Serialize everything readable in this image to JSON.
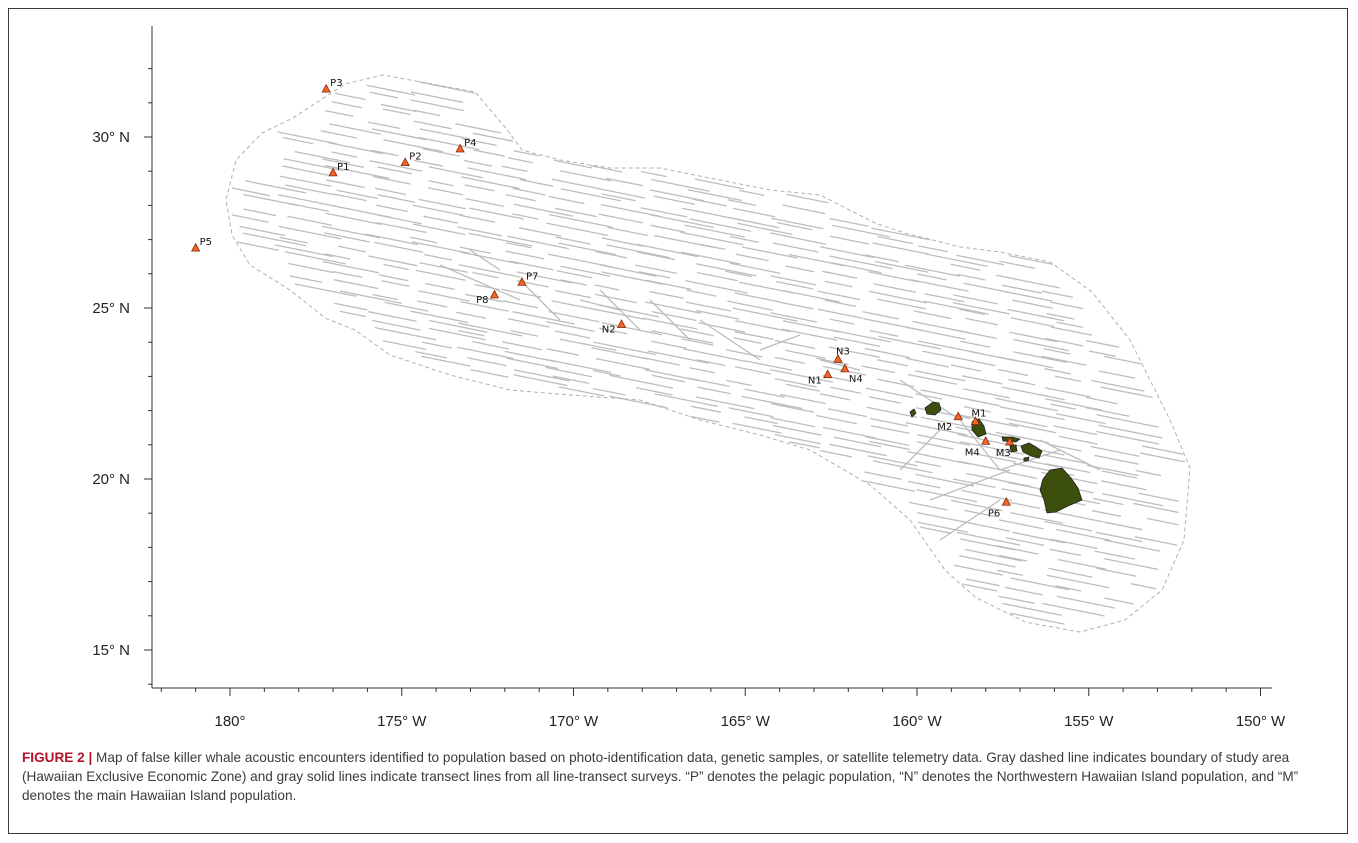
{
  "map": {
    "x_ticks": [
      "180°",
      "175° W",
      "170° W",
      "165° W",
      "160° W",
      "155° W",
      "150° W"
    ],
    "y_ticks": [
      "30° N",
      "25° N",
      "20° N",
      "15° N"
    ],
    "colors": {
      "boundary": "#b0b0b0",
      "transects": "#bdbdbd",
      "islands": "#3d4f0c",
      "markers": "#f26522",
      "marker_stroke": "#8a2b10"
    },
    "encounters": [
      {
        "id": "P3",
        "lon": -177.2,
        "lat": 31.4
      },
      {
        "id": "P4",
        "lon": -173.3,
        "lat": 29.65
      },
      {
        "id": "P2",
        "lon": -174.9,
        "lat": 29.25
      },
      {
        "id": "P1",
        "lon": -177.0,
        "lat": 28.95
      },
      {
        "id": "P5",
        "lon": -181.0,
        "lat": 26.75
      },
      {
        "id": "P7",
        "lon": -171.5,
        "lat": 25.75
      },
      {
        "id": "P8",
        "lon": -172.3,
        "lat": 25.38
      },
      {
        "id": "N2",
        "lon": -168.6,
        "lat": 24.52
      },
      {
        "id": "N3",
        "lon": -162.3,
        "lat": 23.5
      },
      {
        "id": "N4",
        "lon": -162.1,
        "lat": 23.22
      },
      {
        "id": "N1",
        "lon": -162.6,
        "lat": 23.05
      },
      {
        "id": "M2",
        "lon": -158.8,
        "lat": 21.82
      },
      {
        "id": "M1",
        "lon": -158.3,
        "lat": 21.68
      },
      {
        "id": "M4",
        "lon": -158.0,
        "lat": 21.1
      },
      {
        "id": "M3",
        "lon": -157.3,
        "lat": 21.08
      },
      {
        "id": "P6",
        "lon": -157.4,
        "lat": 19.32
      }
    ]
  },
  "caption": {
    "label": "FIGURE 2 |",
    "text": " Map of false killer whale acoustic encounters identified to population based on photo-identification data, genetic samples, or satellite telemetry data. Gray dashed line indicates boundary of study area (Hawaiian Exclusive Economic Zone) and gray solid lines indicate transect lines from all line-transect surveys. “P” denotes the pelagic population, “N” denotes the Northwestern Hawaiian Island population, and “M” denotes the main Hawaiian Island population."
  }
}
